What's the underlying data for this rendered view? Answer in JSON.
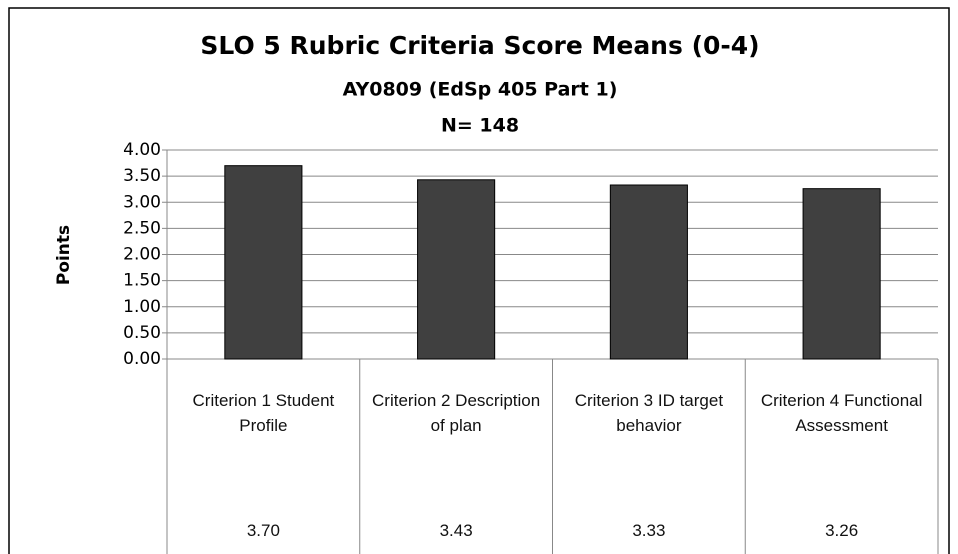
{
  "chart_data": {
    "type": "bar",
    "title": "SLO 5 Rubric Criteria Score Means (0-4)",
    "subtitle": "AY0809 (EdSp 405 Part 1)",
    "note": "N= 148",
    "y_label": "Points",
    "categories": [
      "Criterion 1 Student Profile",
      "Criterion 2 Description of plan",
      "Criterion 3 ID target behavior",
      "Criterion 4 Functional Assessment"
    ],
    "values": [
      3.7,
      3.43,
      3.33,
      3.26
    ],
    "value_labels": [
      "3.70",
      "3.43",
      "3.33",
      "3.26"
    ],
    "color": "#404040",
    "ylim": [
      0,
      4
    ],
    "yticks": [
      {
        "value": 0,
        "label": "0.00"
      },
      {
        "value": 0.5,
        "label": "0.50"
      },
      {
        "value": 1,
        "label": "1.00"
      },
      {
        "value": 1.5,
        "label": "1.50"
      },
      {
        "value": 2,
        "label": "2.00"
      },
      {
        "value": 2.5,
        "label": "2.50"
      },
      {
        "value": 3,
        "label": "3.00"
      },
      {
        "value": 3.5,
        "label": "3.50"
      },
      {
        "value": 4,
        "label": "4.00"
      }
    ],
    "grid": true
  }
}
